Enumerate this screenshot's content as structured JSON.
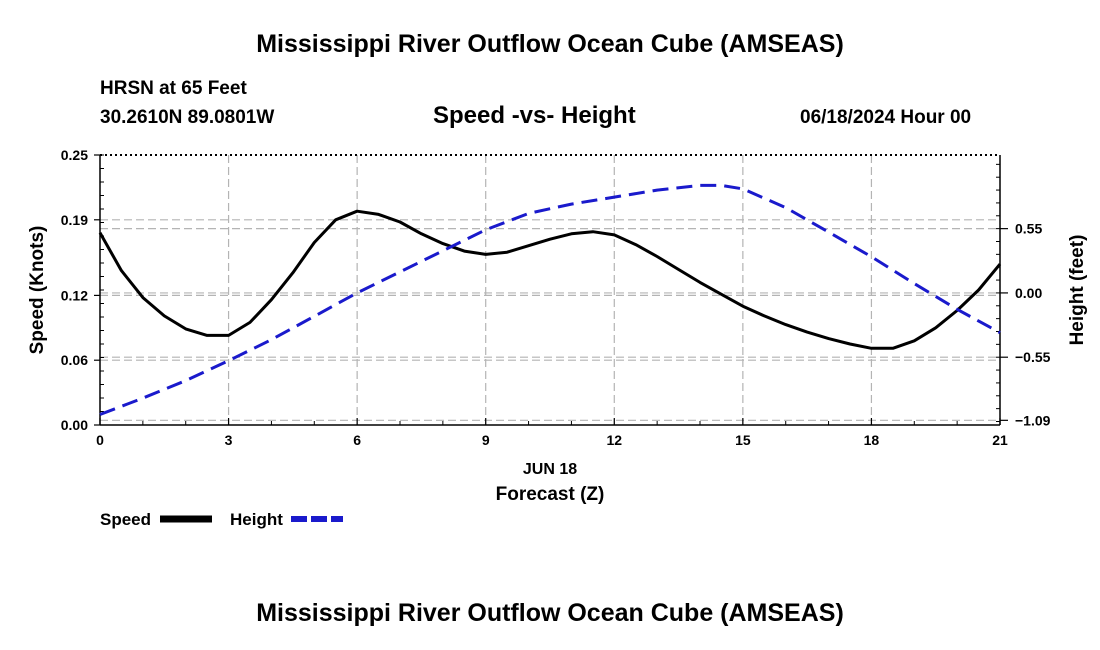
{
  "header": {
    "title": "Mississippi River Outflow Ocean Cube (AMSEAS)",
    "station": "HRSN at 65 Feet",
    "coords": "30.2610N  89.0801W",
    "subtitle": "Speed -vs- Height",
    "datetime": "06/18/2024 Hour 00"
  },
  "footer": {
    "title": "Mississippi River Outflow Ocean Cube (AMSEAS)"
  },
  "legend": {
    "speed_label": "Speed",
    "height_label": "Height"
  },
  "colors": {
    "speed": "#000000",
    "height": "#1a1acc",
    "grid": "#b4b4b4"
  },
  "chart_data": {
    "type": "line",
    "xlabel": "Forecast (Z)",
    "xdate_label": "JUN 18",
    "xlim": [
      0,
      21
    ],
    "xticks": [
      0,
      3,
      6,
      9,
      12,
      15,
      18,
      21
    ],
    "xtick_labels": [
      "0",
      "3",
      "6",
      "9",
      "12",
      "15",
      "18",
      "21"
    ],
    "y_left": {
      "label": "Speed (Knots)",
      "lim": [
        0,
        0.25
      ],
      "ticks": [
        0,
        0.06,
        0.12,
        0.19,
        0.25
      ],
      "tick_labels": [
        "0.00",
        "0.06",
        "0.12",
        "0.19",
        "0.25"
      ]
    },
    "y_right": {
      "label": "Height (feet)",
      "lim": [
        -1.13,
        1.18
      ],
      "ticks": [
        -1.09,
        -0.55,
        0.0,
        0.55
      ],
      "tick_labels": [
        "−1.09",
        "−0.55",
        "0.00",
        "0.55"
      ]
    },
    "series": [
      {
        "name": "Speed",
        "axis": "left",
        "style": "solid",
        "x": [
          0,
          0.5,
          1,
          1.5,
          2,
          2.5,
          3,
          3.5,
          4,
          4.5,
          5,
          5.5,
          6,
          6.5,
          7,
          7.5,
          8,
          8.5,
          9,
          9.5,
          10,
          10.5,
          11,
          11.5,
          12,
          12.5,
          13,
          13.5,
          14,
          14.5,
          15,
          15.5,
          16,
          16.5,
          17,
          17.5,
          18,
          18.5,
          19,
          19.5,
          20,
          20.5,
          21
        ],
        "values": [
          0.178,
          0.143,
          0.118,
          0.101,
          0.089,
          0.083,
          0.083,
          0.095,
          0.116,
          0.141,
          0.169,
          0.19,
          0.198,
          0.195,
          0.188,
          0.177,
          0.168,
          0.161,
          0.158,
          0.16,
          0.166,
          0.172,
          0.177,
          0.179,
          0.176,
          0.167,
          0.156,
          0.144,
          0.132,
          0.121,
          0.11,
          0.101,
          0.093,
          0.086,
          0.08,
          0.075,
          0.071,
          0.071,
          0.078,
          0.09,
          0.106,
          0.125,
          0.149
        ]
      },
      {
        "name": "Height",
        "axis": "right",
        "style": "dashed",
        "x": [
          0,
          1,
          2,
          3,
          4,
          5,
          6,
          7,
          8,
          9,
          10,
          11,
          12,
          13,
          14,
          14.5,
          15,
          16,
          17,
          18,
          19,
          20,
          21
        ],
        "values": [
          -1.04,
          -0.9,
          -0.75,
          -0.58,
          -0.4,
          -0.2,
          0.0,
          0.18,
          0.36,
          0.54,
          0.68,
          0.76,
          0.82,
          0.88,
          0.92,
          0.92,
          0.89,
          0.73,
          0.52,
          0.31,
          0.08,
          -0.14,
          -0.34
        ]
      }
    ]
  }
}
